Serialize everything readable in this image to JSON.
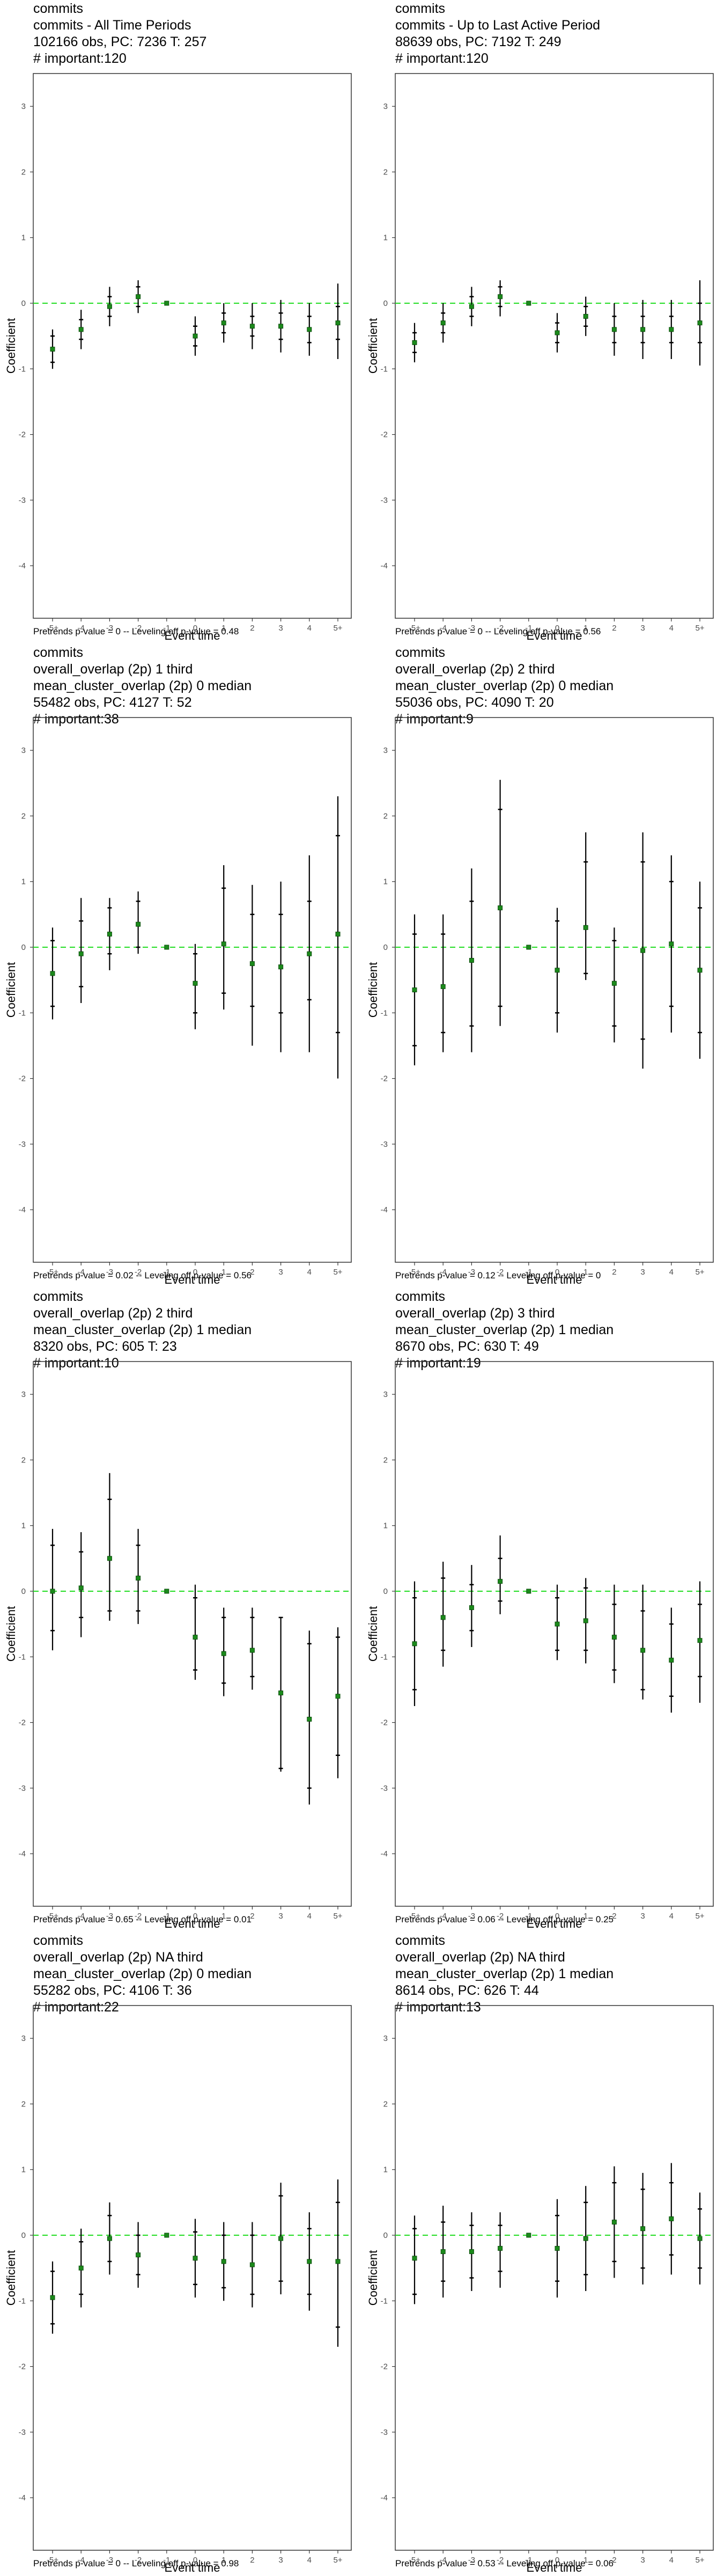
{
  "style": {
    "zero_line_color": "#22dd22",
    "point_color": "#1b8a1b",
    "errorbar_color": "#000000",
    "frame_color": "#333333"
  },
  "chart_data": [
    {
      "type": "scatter",
      "subtype": "event-study coefficient plot with confidence intervals",
      "title_lines": [
        "commits",
        "commits - All Time Periods",
        "102166 obs, PC: 7236 T: 257",
        "# important:120"
      ],
      "xlabel": "Event time",
      "ylabel": "Coefficient",
      "categories": [
        "-5+",
        "-4",
        "-3",
        "-2",
        "-1",
        "0",
        "1",
        "2",
        "3",
        "4",
        "5+"
      ],
      "ylim": [
        -4.8,
        3.5
      ],
      "yticks": [
        -4,
        -3,
        -2,
        -1,
        0,
        1,
        2,
        3
      ],
      "reference_line": 0,
      "coef": [
        -0.7,
        -0.4,
        -0.05,
        0.1,
        0,
        -0.5,
        -0.3,
        -0.35,
        -0.35,
        -0.4,
        -0.3
      ],
      "ci_inner": [
        [
          -0.9,
          -0.5
        ],
        [
          -0.55,
          -0.25
        ],
        [
          -0.2,
          0.1
        ],
        [
          -0.05,
          0.25
        ],
        [
          0,
          0
        ],
        [
          -0.65,
          -0.35
        ],
        [
          -0.45,
          -0.15
        ],
        [
          -0.5,
          -0.2
        ],
        [
          -0.55,
          -0.15
        ],
        [
          -0.6,
          -0.2
        ],
        [
          -0.55,
          -0.05
        ]
      ],
      "ci_outer": [
        [
          -1.0,
          -0.4
        ],
        [
          -0.7,
          -0.1
        ],
        [
          -0.35,
          0.25
        ],
        [
          -0.15,
          0.35
        ],
        [
          0,
          0
        ],
        [
          -0.8,
          -0.2
        ],
        [
          -0.6,
          0.0
        ],
        [
          -0.7,
          0.0
        ],
        [
          -0.75,
          0.05
        ],
        [
          -0.8,
          0.0
        ],
        [
          -0.85,
          0.3
        ]
      ],
      "footnote": "Pretrends p-value = 0 -- Leveling off p-value = 0.48"
    },
    {
      "type": "scatter",
      "subtype": "event-study coefficient plot with confidence intervals",
      "title_lines": [
        "commits",
        "commits - Up to Last Active Period",
        "88639 obs, PC: 7192 T: 249",
        "# important:120"
      ],
      "xlabel": "Event time",
      "ylabel": "Coefficient",
      "categories": [
        "-5+",
        "-4",
        "-3",
        "-2",
        "-1",
        "0",
        "1",
        "2",
        "3",
        "4",
        "5+"
      ],
      "ylim": [
        -4.8,
        3.5
      ],
      "yticks": [
        -4,
        -3,
        -2,
        -1,
        0,
        1,
        2,
        3
      ],
      "reference_line": 0,
      "coef": [
        -0.6,
        -0.3,
        -0.05,
        0.1,
        0,
        -0.45,
        -0.2,
        -0.4,
        -0.4,
        -0.4,
        -0.3
      ],
      "ci_inner": [
        [
          -0.75,
          -0.45
        ],
        [
          -0.45,
          -0.15
        ],
        [
          -0.2,
          0.1
        ],
        [
          -0.05,
          0.25
        ],
        [
          0,
          0
        ],
        [
          -0.6,
          -0.3
        ],
        [
          -0.35,
          -0.05
        ],
        [
          -0.6,
          -0.2
        ],
        [
          -0.6,
          -0.2
        ],
        [
          -0.6,
          -0.2
        ],
        [
          -0.6,
          0.0
        ]
      ],
      "ci_outer": [
        [
          -0.9,
          -0.3
        ],
        [
          -0.6,
          0.0
        ],
        [
          -0.35,
          0.25
        ],
        [
          -0.2,
          0.35
        ],
        [
          0,
          0
        ],
        [
          -0.75,
          -0.15
        ],
        [
          -0.5,
          0.1
        ],
        [
          -0.8,
          0.0
        ],
        [
          -0.85,
          0.05
        ],
        [
          -0.85,
          0.05
        ],
        [
          -0.95,
          0.35
        ]
      ],
      "footnote": "Pretrends p-value = 0 -- Leveling off p-value = 0.56"
    },
    {
      "type": "scatter",
      "subtype": "event-study coefficient plot with confidence intervals",
      "title_lines": [
        "commits",
        "overall_overlap (2p) 1 third",
        "mean_cluster_overlap (2p) 0 median",
        "55482 obs, PC: 4127 T: 52",
        "# important:38"
      ],
      "xlabel": "Event time",
      "ylabel": "Coefficient",
      "categories": [
        "-5+",
        "-4",
        "-3",
        "-2",
        "-1",
        "0",
        "1",
        "2",
        "3",
        "4",
        "5+"
      ],
      "ylim": [
        -4.8,
        3.5
      ],
      "yticks": [
        -4,
        -3,
        -2,
        -1,
        0,
        1,
        2,
        3
      ],
      "reference_line": 0,
      "coef": [
        -0.4,
        -0.1,
        0.2,
        0.35,
        0,
        -0.55,
        0.05,
        -0.25,
        -0.3,
        -0.1,
        0.2
      ],
      "ci_inner": [
        [
          -0.9,
          0.1
        ],
        [
          -0.6,
          0.4
        ],
        [
          -0.1,
          0.6
        ],
        [
          0.0,
          0.7
        ],
        [
          0,
          0
        ],
        [
          -1.0,
          -0.1
        ],
        [
          -0.7,
          0.9
        ],
        [
          -0.9,
          0.5
        ],
        [
          -1.0,
          0.5
        ],
        [
          -0.8,
          0.7
        ],
        [
          -1.3,
          1.7
        ]
      ],
      "ci_outer": [
        [
          -1.1,
          0.3
        ],
        [
          -0.85,
          0.75
        ],
        [
          -0.35,
          0.75
        ],
        [
          -0.1,
          0.85
        ],
        [
          0,
          0
        ],
        [
          -1.25,
          0.05
        ],
        [
          -0.95,
          1.25
        ],
        [
          -1.5,
          0.95
        ],
        [
          -1.6,
          1.0
        ],
        [
          -1.6,
          1.4
        ],
        [
          -2.0,
          2.3
        ]
      ],
      "footnote": "Pretrends p-value = 0.02 -- Leveling off p-value = 0.56"
    },
    {
      "type": "scatter",
      "subtype": "event-study coefficient plot with confidence intervals",
      "title_lines": [
        "commits",
        "overall_overlap (2p) 2 third",
        "mean_cluster_overlap (2p) 0 median",
        "55036 obs, PC: 4090 T: 20",
        "# important:9"
      ],
      "xlabel": "Event time",
      "ylabel": "Coefficient",
      "categories": [
        "-5+",
        "-4",
        "-3",
        "-2",
        "-1",
        "0",
        "1",
        "2",
        "3",
        "4",
        "5+"
      ],
      "ylim": [
        -4.8,
        3.5
      ],
      "yticks": [
        -4,
        -3,
        -2,
        -1,
        0,
        1,
        2,
        3
      ],
      "reference_line": 0,
      "coef": [
        -0.65,
        -0.6,
        -0.2,
        0.6,
        0,
        -0.35,
        0.3,
        -0.55,
        -0.05,
        0.05,
        -0.35
      ],
      "ci_inner": [
        [
          -1.5,
          0.2
        ],
        [
          -1.3,
          0.2
        ],
        [
          -1.2,
          0.7
        ],
        [
          -0.9,
          2.1
        ],
        [
          0,
          0
        ],
        [
          -1.0,
          0.4
        ],
        [
          -0.4,
          1.3
        ],
        [
          -1.2,
          0.1
        ],
        [
          -1.4,
          1.3
        ],
        [
          -0.9,
          1.0
        ],
        [
          -1.3,
          0.6
        ]
      ],
      "ci_outer": [
        [
          -1.8,
          0.5
        ],
        [
          -1.6,
          0.5
        ],
        [
          -1.6,
          1.2
        ],
        [
          -1.2,
          2.55
        ],
        [
          0,
          0
        ],
        [
          -1.3,
          0.6
        ],
        [
          -0.5,
          1.75
        ],
        [
          -1.45,
          0.3
        ],
        [
          -1.85,
          1.75
        ],
        [
          -1.3,
          1.4
        ],
        [
          -1.7,
          1.0
        ]
      ],
      "footnote": "Pretrends p-value = 0.12 -- Leveling off p-value = 0"
    },
    {
      "type": "scatter",
      "subtype": "event-study coefficient plot with confidence intervals",
      "title_lines": [
        "commits",
        "overall_overlap (2p) 2 third",
        "mean_cluster_overlap (2p) 1 median",
        "8320 obs, PC: 605 T: 23",
        "# important:10"
      ],
      "xlabel": "Event time",
      "ylabel": "Coefficient",
      "categories": [
        "-5+",
        "-4",
        "-3",
        "-2",
        "-1",
        "0",
        "1",
        "2",
        "3",
        "4",
        "5+"
      ],
      "ylim": [
        -4.8,
        3.5
      ],
      "yticks": [
        -4,
        -3,
        -2,
        -1,
        0,
        1,
        2,
        3
      ],
      "reference_line": 0,
      "coef": [
        0.0,
        0.05,
        0.5,
        0.2,
        0,
        -0.7,
        -0.95,
        -0.9,
        -1.55,
        -1.95,
        -1.6
      ],
      "ci_inner": [
        [
          -0.6,
          0.7
        ],
        [
          -0.4,
          0.6
        ],
        [
          -0.3,
          1.4
        ],
        [
          -0.3,
          0.7
        ],
        [
          0,
          0
        ],
        [
          -1.2,
          -0.1
        ],
        [
          -1.4,
          -0.4
        ],
        [
          -1.3,
          -0.4
        ],
        [
          -2.7,
          -0.4
        ],
        [
          -3.0,
          -0.8
        ],
        [
          -2.5,
          -0.7
        ]
      ],
      "ci_outer": [
        [
          -0.9,
          0.95
        ],
        [
          -0.7,
          0.9
        ],
        [
          -0.45,
          1.8
        ],
        [
          -0.5,
          0.95
        ],
        [
          0,
          0
        ],
        [
          -1.35,
          0.1
        ],
        [
          -1.6,
          -0.25
        ],
        [
          -1.5,
          -0.25
        ],
        [
          -2.75,
          -0.4
        ],
        [
          -3.25,
          -0.6
        ],
        [
          -2.85,
          -0.55
        ]
      ],
      "footnote": "Pretrends p-value = 0.65 -- Leveling off p-value = 0.01"
    },
    {
      "type": "scatter",
      "subtype": "event-study coefficient plot with confidence intervals",
      "title_lines": [
        "commits",
        "overall_overlap (2p) 3 third",
        "mean_cluster_overlap (2p) 1 median",
        "8670 obs, PC: 630 T: 49",
        "# important:19"
      ],
      "xlabel": "Event time",
      "ylabel": "Coefficient",
      "categories": [
        "-5+",
        "-4",
        "-3",
        "-2",
        "-1",
        "0",
        "1",
        "2",
        "3",
        "4",
        "5+"
      ],
      "ylim": [
        -4.8,
        3.5
      ],
      "yticks": [
        -4,
        -3,
        -2,
        -1,
        0,
        1,
        2,
        3
      ],
      "reference_line": 0,
      "coef": [
        -0.8,
        -0.4,
        -0.25,
        0.15,
        0,
        -0.5,
        -0.45,
        -0.7,
        -0.9,
        -1.05,
        -0.75
      ],
      "ci_inner": [
        [
          -1.5,
          -0.1
        ],
        [
          -0.9,
          0.2
        ],
        [
          -0.6,
          0.1
        ],
        [
          -0.15,
          0.5
        ],
        [
          0,
          0
        ],
        [
          -0.9,
          -0.1
        ],
        [
          -0.9,
          0.05
        ],
        [
          -1.2,
          -0.2
        ],
        [
          -1.5,
          -0.3
        ],
        [
          -1.6,
          -0.5
        ],
        [
          -1.3,
          -0.2
        ]
      ],
      "ci_outer": [
        [
          -1.75,
          0.15
        ],
        [
          -1.15,
          0.45
        ],
        [
          -0.85,
          0.4
        ],
        [
          -0.35,
          0.85
        ],
        [
          0,
          0
        ],
        [
          -1.05,
          0.1
        ],
        [
          -1.1,
          0.2
        ],
        [
          -1.4,
          0.1
        ],
        [
          -1.65,
          0.1
        ],
        [
          -1.85,
          -0.25
        ],
        [
          -1.7,
          0.15
        ]
      ],
      "footnote": "Pretrends p-value = 0.06 -- Leveling off p-value = 0.25"
    },
    {
      "type": "scatter",
      "subtype": "event-study coefficient plot with confidence intervals",
      "title_lines": [
        "commits",
        "overall_overlap (2p) NA third",
        "mean_cluster_overlap (2p) 0 median",
        "55282 obs, PC: 4106 T: 36",
        "# important:22"
      ],
      "xlabel": "Event time",
      "ylabel": "Coefficient",
      "categories": [
        "-5+",
        "-4",
        "-3",
        "-2",
        "-1",
        "0",
        "1",
        "2",
        "3",
        "4",
        "5+"
      ],
      "ylim": [
        -4.8,
        3.5
      ],
      "yticks": [
        -4,
        -3,
        -2,
        -1,
        0,
        1,
        2,
        3
      ],
      "reference_line": 0,
      "coef": [
        -0.95,
        -0.5,
        -0.05,
        -0.3,
        0,
        -0.35,
        -0.4,
        -0.45,
        -0.05,
        -0.4,
        -0.4
      ],
      "ci_inner": [
        [
          -1.35,
          -0.55
        ],
        [
          -0.9,
          -0.1
        ],
        [
          -0.4,
          0.3
        ],
        [
          -0.6,
          0.0
        ],
        [
          0,
          0
        ],
        [
          -0.75,
          0.05
        ],
        [
          -0.8,
          0.0
        ],
        [
          -0.9,
          0.0
        ],
        [
          -0.7,
          0.6
        ],
        [
          -0.9,
          0.1
        ],
        [
          -1.4,
          0.5
        ]
      ],
      "ci_outer": [
        [
          -1.5,
          -0.4
        ],
        [
          -1.1,
          0.1
        ],
        [
          -0.6,
          0.5
        ],
        [
          -0.8,
          0.2
        ],
        [
          0,
          0
        ],
        [
          -0.95,
          0.25
        ],
        [
          -1.0,
          0.2
        ],
        [
          -1.1,
          0.2
        ],
        [
          -0.9,
          0.8
        ],
        [
          -1.15,
          0.35
        ],
        [
          -1.7,
          0.85
        ]
      ],
      "footnote": "Pretrends p-value = 0 -- Leveling off p-value = 0.98"
    },
    {
      "type": "scatter",
      "subtype": "event-study coefficient plot with confidence intervals",
      "title_lines": [
        "commits",
        "overall_overlap (2p) NA third",
        "mean_cluster_overlap (2p) 1 median",
        "8614 obs, PC: 626 T: 44",
        "# important:13"
      ],
      "xlabel": "Event time",
      "ylabel": "Coefficient",
      "categories": [
        "-5+",
        "-4",
        "-3",
        "-2",
        "-1",
        "0",
        "1",
        "2",
        "3",
        "4",
        "5+"
      ],
      "ylim": [
        -4.8,
        3.5
      ],
      "yticks": [
        -4,
        -3,
        -2,
        -1,
        0,
        1,
        2,
        3
      ],
      "reference_line": 0,
      "coef": [
        -0.35,
        -0.25,
        -0.25,
        -0.2,
        0,
        -0.2,
        -0.05,
        0.2,
        0.1,
        0.25,
        -0.05
      ],
      "ci_inner": [
        [
          -0.9,
          0.1
        ],
        [
          -0.7,
          0.2
        ],
        [
          -0.65,
          0.15
        ],
        [
          -0.55,
          0.15
        ],
        [
          0,
          0
        ],
        [
          -0.7,
          0.3
        ],
        [
          -0.6,
          0.5
        ],
        [
          -0.4,
          0.8
        ],
        [
          -0.5,
          0.7
        ],
        [
          -0.3,
          0.8
        ],
        [
          -0.5,
          0.4
        ]
      ],
      "ci_outer": [
        [
          -1.05,
          0.3
        ],
        [
          -0.95,
          0.45
        ],
        [
          -0.85,
          0.35
        ],
        [
          -0.8,
          0.35
        ],
        [
          0,
          0
        ],
        [
          -0.95,
          0.55
        ],
        [
          -0.85,
          0.75
        ],
        [
          -0.65,
          1.05
        ],
        [
          -0.75,
          0.95
        ],
        [
          -0.6,
          1.1
        ],
        [
          -0.75,
          0.65
        ]
      ],
      "footnote": "Pretrends p-value = 0.53 -- Leveling off p-value = 0.06"
    }
  ]
}
